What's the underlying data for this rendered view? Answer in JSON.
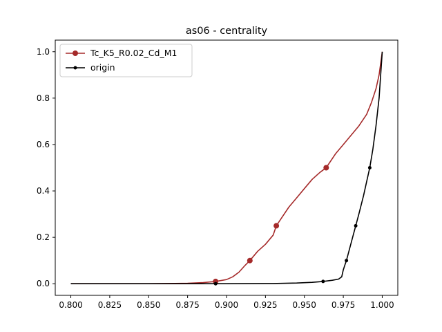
{
  "chart_data": {
    "type": "line",
    "title": "as06 - centrality",
    "xlabel": "",
    "ylabel": "",
    "xlim": [
      0.79,
      1.01
    ],
    "ylim": [
      -0.05,
      1.05
    ],
    "x_ticks": [
      "0.800",
      "0.825",
      "0.850",
      "0.875",
      "0.900",
      "0.925",
      "0.950",
      "0.975",
      "1.000"
    ],
    "y_ticks": [
      "0.0",
      "0.2",
      "0.4",
      "0.6",
      "0.8",
      "1.0"
    ],
    "grid": false,
    "legend_position": "upper-left",
    "series": [
      {
        "name": "Tc_K5_R0.02_Cd_M1",
        "color": "#a52a2a",
        "marker": "circle",
        "points": [
          [
            0.8,
            0.0
          ],
          [
            0.85,
            0.0
          ],
          [
            0.875,
            0.002
          ],
          [
            0.885,
            0.005
          ],
          [
            0.893,
            0.01
          ],
          [
            0.9,
            0.018
          ],
          [
            0.904,
            0.03
          ],
          [
            0.908,
            0.05
          ],
          [
            0.912,
            0.08
          ],
          [
            0.915,
            0.1
          ],
          [
            0.92,
            0.14
          ],
          [
            0.925,
            0.17
          ],
          [
            0.93,
            0.21
          ],
          [
            0.932,
            0.25
          ],
          [
            0.935,
            0.28
          ],
          [
            0.94,
            0.33
          ],
          [
            0.945,
            0.37
          ],
          [
            0.95,
            0.41
          ],
          [
            0.955,
            0.45
          ],
          [
            0.96,
            0.48
          ],
          [
            0.964,
            0.5
          ],
          [
            0.97,
            0.56
          ],
          [
            0.975,
            0.6
          ],
          [
            0.98,
            0.64
          ],
          [
            0.985,
            0.68
          ],
          [
            0.99,
            0.73
          ],
          [
            0.993,
            0.78
          ],
          [
            0.996,
            0.84
          ],
          [
            0.998,
            0.9
          ],
          [
            1.0,
            1.0
          ]
        ],
        "marker_points": [
          [
            0.893,
            0.01
          ],
          [
            0.915,
            0.1
          ],
          [
            0.932,
            0.25
          ],
          [
            0.964,
            0.5
          ]
        ]
      },
      {
        "name": "origin",
        "color": "#000000",
        "marker": "dot",
        "points": [
          [
            0.8,
            0.0
          ],
          [
            0.9,
            0.0
          ],
          [
            0.93,
            0.001
          ],
          [
            0.945,
            0.003
          ],
          [
            0.955,
            0.006
          ],
          [
            0.962,
            0.01
          ],
          [
            0.968,
            0.015
          ],
          [
            0.972,
            0.02
          ],
          [
            0.974,
            0.03
          ],
          [
            0.975,
            0.06
          ],
          [
            0.976,
            0.08
          ],
          [
            0.977,
            0.1
          ],
          [
            0.979,
            0.15
          ],
          [
            0.981,
            0.2
          ],
          [
            0.983,
            0.25
          ],
          [
            0.985,
            0.3
          ],
          [
            0.988,
            0.38
          ],
          [
            0.99,
            0.44
          ],
          [
            0.992,
            0.5
          ],
          [
            0.994,
            0.58
          ],
          [
            0.996,
            0.68
          ],
          [
            0.998,
            0.8
          ],
          [
            0.999,
            0.9
          ],
          [
            1.0,
            1.0
          ]
        ],
        "marker_points": [
          [
            0.893,
            0.0
          ],
          [
            0.962,
            0.01
          ],
          [
            0.977,
            0.1
          ],
          [
            0.983,
            0.25
          ],
          [
            0.992,
            0.5
          ]
        ]
      }
    ]
  }
}
